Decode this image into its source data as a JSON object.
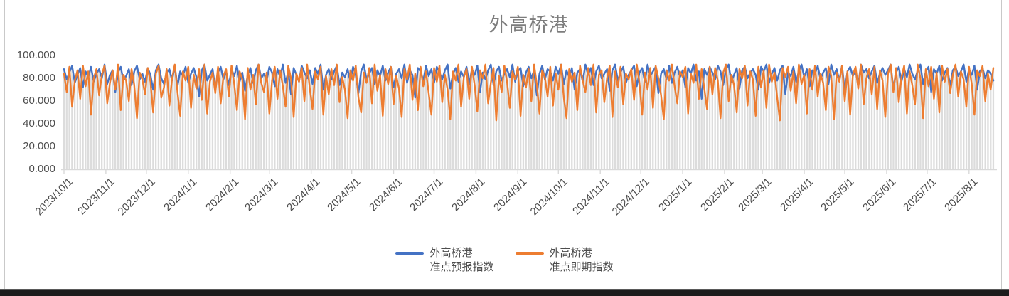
{
  "window": {
    "background": "#ffffff",
    "side_border_color": "#c9c9c9",
    "bottom_edge_color": "#1c1c1c"
  },
  "chart_data": {
    "type": "line",
    "title": "外高桥港",
    "title_color": "#7d7d7d",
    "xlabel": "",
    "ylabel": "",
    "ylim": [
      0,
      100
    ],
    "y_tick_step": 20,
    "y_tick_labels": [
      "0.000",
      "20.000",
      "40.000",
      "60.000",
      "80.000",
      "100.000"
    ],
    "x_tick_labels": [
      "2023/10/1",
      "2023/11/1",
      "2023/12/1",
      "2024/1/1",
      "2024/2/1",
      "2024/3/1",
      "2024/4/1",
      "2024/5/1",
      "2024/6/1",
      "2024/7/1",
      "2024/8/1",
      "2024/9/1",
      "2024/10/1",
      "2024/11/1",
      "2024/12/1",
      "2025/1/1",
      "2025/2/1",
      "2025/3/1",
      "2025/4/1",
      "2025/5/1",
      "2025/6/1",
      "2025/7/1",
      "2025/8/1"
    ],
    "start_date": "2023/10/1",
    "point_interval_days": 2,
    "grid": false,
    "legend_position": "bottom",
    "axis_label_color": "#4d4d4d",
    "axis_line_color": "#d9d9d9",
    "drop_lines": {
      "enabled": true,
      "color": "#dcdcdc"
    },
    "series": [
      {
        "name": "外高桥港准点预报指数",
        "label_lines": [
          "外高桥港",
          "准点预报指数"
        ],
        "color": "#4472C4",
        "values": [
          88,
          79,
          85,
          91,
          76,
          83,
          89,
          72,
          86,
          81,
          90,
          77,
          84,
          88,
          80,
          92,
          75,
          83,
          87,
          68,
          85,
          90,
          78,
          82,
          88,
          74,
          86,
          91,
          79,
          84,
          77,
          89,
          83,
          70,
          87,
          92,
          80,
          75,
          85,
          88,
          78,
          91,
          73,
          86,
          82,
          90,
          76,
          84,
          89,
          81,
          64,
          87,
          92,
          78,
          83,
          88,
          71,
          85,
          90,
          79,
          86,
          74,
          88,
          82,
          91,
          77,
          85,
          69,
          83,
          89,
          76,
          87,
          92,
          80,
          84,
          78,
          90,
          85,
          73,
          88,
          81,
          92,
          76,
          86,
          66,
          89,
          83,
          77,
          91,
          85,
          80,
          87,
          75,
          89,
          84,
          92,
          70,
          83,
          88,
          79,
          86,
          91,
          74,
          85,
          81,
          88,
          77,
          90,
          83,
          67,
          86,
          92,
          79,
          84,
          89,
          75,
          87,
          82,
          91,
          78,
          85,
          90,
          72,
          84,
          88,
          80,
          92,
          76,
          87,
          83,
          63,
          89,
          86,
          78,
          91,
          82,
          88,
          76,
          90,
          85,
          79,
          87,
          92,
          71,
          84,
          89,
          77,
          86,
          81,
          90,
          75,
          88,
          83,
          91,
          68,
          85,
          79,
          87,
          92,
          74,
          86,
          90,
          78,
          84,
          88,
          81,
          92,
          77,
          86,
          89,
          73,
          85,
          90,
          80,
          87,
          65,
          84,
          91,
          79,
          88,
          86,
          78,
          90,
          84,
          92,
          75,
          87,
          81,
          89,
          70,
          85,
          88,
          77,
          92,
          83,
          89,
          74,
          86,
          91,
          80,
          84,
          88,
          69,
          87,
          92,
          78,
          85,
          90,
          76,
          83,
          87,
          91,
          73,
          85,
          89,
          77,
          92,
          82,
          86,
          90,
          67,
          84,
          88,
          79,
          91,
          76,
          85,
          90,
          81,
          87,
          72,
          89,
          84,
          92,
          78,
          86,
          62,
          88,
          83,
          90,
          85,
          79,
          91,
          86,
          74,
          88,
          92,
          77,
          83,
          89,
          71,
          87,
          90,
          80,
          85,
          88,
          83,
          70,
          90,
          86,
          92,
          76,
          84,
          89,
          78,
          87,
          91,
          66,
          85,
          82,
          90,
          77,
          86,
          92,
          81,
          88,
          73,
          87,
          84,
          91,
          79,
          85,
          89,
          75,
          92,
          83,
          88,
          78,
          91,
          69,
          86,
          90,
          82,
          87,
          74,
          92,
          85,
          88,
          80,
          86,
          91,
          76,
          84,
          89,
          83,
          87,
          92,
          71,
          85,
          90,
          77,
          88,
          81,
          92,
          84,
          79,
          87,
          92,
          75,
          86,
          90,
          68,
          88,
          84,
          91,
          78,
          85,
          89,
          73,
          87,
          90,
          82,
          86,
          92,
          77,
          88,
          83,
          91,
          70,
          86,
          89,
          80,
          87,
          84,
          78
        ]
      },
      {
        "name": "外高桥港准点即期指数",
        "label_lines": [
          "外高桥港",
          "准点即期指数"
        ],
        "color": "#ED7D31",
        "values": [
          84,
          68,
          90,
          55,
          78,
          87,
          62,
          91,
          73,
          86,
          48,
          80,
          88,
          65,
          83,
          91,
          58,
          76,
          87,
          70,
          92,
          52,
          83,
          78,
          60,
          88,
          74,
          45,
          85,
          79,
          66,
          89,
          77,
          50,
          84,
          91,
          63,
          72,
          88,
          56,
          80,
          92,
          68,
          47,
          86,
          78,
          90,
          54,
          83,
          71,
          88,
          61,
          92,
          49,
          77,
          85,
          67,
          90,
          58,
          82,
          88,
          64,
          91,
          75,
          52,
          86,
          79,
          44,
          89,
          70,
          83,
          57,
          92,
          76,
          68,
          85,
          49,
          78,
          90,
          62,
          87,
          73,
          55,
          91,
          80,
          46,
          84,
          77,
          89,
          60,
          92,
          71,
          53,
          86,
          79,
          90,
          48,
          82,
          66,
          88,
          74,
          92,
          59,
          81,
          70,
          45,
          87,
          78,
          91,
          63,
          50,
          85,
          76,
          89,
          58,
          92,
          69,
          83,
          47,
          88,
          75,
          90,
          57,
          82,
          71,
          46,
          88,
          79,
          92,
          61,
          84,
          52,
          90,
          73,
          86,
          67,
          48,
          89,
          77,
          91,
          59,
          83,
          70,
          44,
          86,
          78,
          92,
          55,
          81,
          88,
          62,
          90,
          74,
          51,
          87,
          80,
          92,
          58,
          76,
          89,
          43,
          82,
          68,
          91,
          77,
          54,
          86,
          79,
          90,
          47,
          83,
          72,
          88,
          60,
          92,
          75,
          49,
          87,
          81,
          64,
          90,
          56,
          84,
          70,
          92,
          63,
          45,
          88,
          77,
          85,
          52,
          91,
          78,
          68,
          89,
          74,
          92,
          50,
          83,
          87,
          59,
          80,
          91,
          46,
          86,
          72,
          90,
          57,
          84,
          79,
          88,
          61,
          92,
          76,
          48,
          85,
          70,
          89,
          54,
          91,
          80,
          65,
          44,
          87,
          78,
          92,
          73,
          58,
          86,
          81,
          90,
          49,
          84,
          76,
          92,
          62,
          88,
          71,
          53,
          90,
          66,
          89,
          78,
          45,
          85,
          92,
          60,
          83,
          74,
          50,
          88,
          80,
          91,
          56,
          86,
          79,
          47,
          90,
          72,
          87,
          54,
          92,
          77,
          85,
          63,
          43,
          89,
          81,
          90,
          69,
          86,
          58,
          92,
          75,
          83,
          49,
          88,
          70,
          91,
          64,
          84,
          76,
          52,
          90,
          82,
          44,
          85,
          77,
          91,
          60,
          86,
          48,
          83,
          90,
          71,
          92,
          57,
          80,
          88,
          66,
          90,
          53,
          87,
          78,
          46,
          84,
          92,
          68,
          89,
          59,
          81,
          91,
          49,
          86,
          74,
          57,
          92,
          80,
          45,
          88,
          73,
          90,
          62,
          85,
          50,
          91,
          77,
          88,
          67,
          83,
          92,
          64,
          86,
          79,
          55,
          90,
          75,
          48,
          87,
          82,
          91,
          60,
          84,
          70,
          89
        ]
      }
    ]
  }
}
